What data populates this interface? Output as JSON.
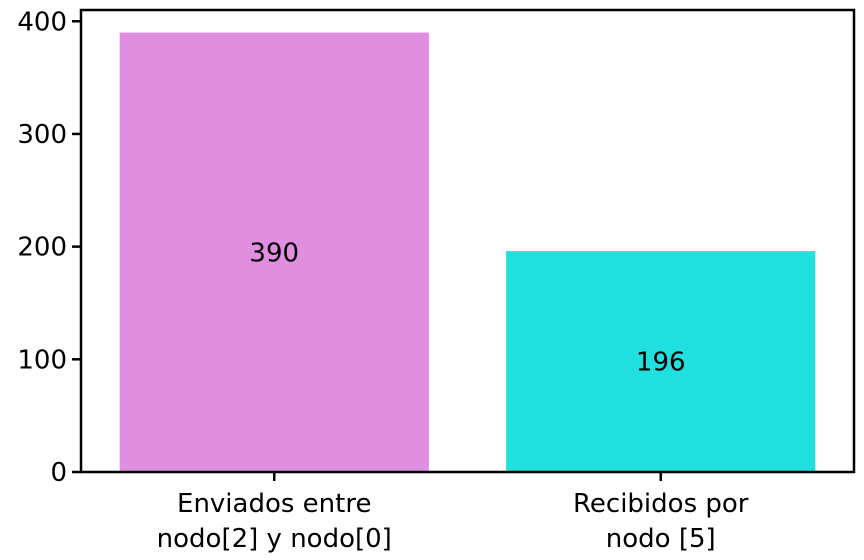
{
  "chart_data": {
    "type": "bar",
    "categories": [
      [
        "Enviados entre",
        "nodo[2] y nodo[0]"
      ],
      [
        "Recibidos por",
        "nodo [5]"
      ]
    ],
    "values": [
      390,
      196
    ],
    "value_labels": [
      "390",
      "196"
    ],
    "colors": [
      "#e08ee0",
      "#20e0e0"
    ],
    "ylim": [
      0,
      410
    ],
    "yticks": [
      0,
      100,
      200,
      300,
      400
    ],
    "title": "",
    "xlabel": "",
    "ylabel": "",
    "grid": false,
    "legend": "none"
  }
}
